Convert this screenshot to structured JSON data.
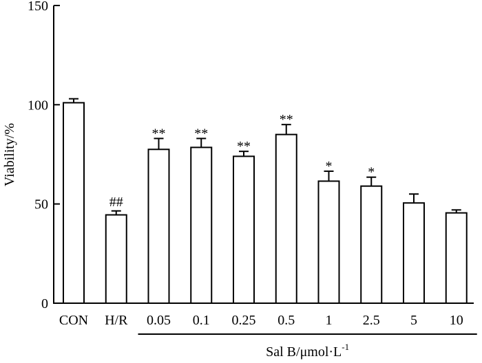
{
  "chart_data": {
    "type": "bar",
    "ylabel": "Viability/%",
    "ylim": [
      0,
      150
    ],
    "yticks": [
      0,
      50,
      100,
      150
    ],
    "group_label": {
      "prefix": "Sal B/μmol·L",
      "superscript": "-1"
    },
    "categories": [
      "CON",
      "H/R",
      "0.05",
      "0.1",
      "0.25",
      "0.5",
      "1",
      "2.5",
      "5",
      "10"
    ],
    "grouped_categories": [
      "0.05",
      "0.1",
      "0.25",
      "0.5",
      "1",
      "2.5",
      "5",
      "10"
    ],
    "series": [
      {
        "values": [
          101,
          44.5,
          77.5,
          78.5,
          74,
          85,
          61.5,
          59,
          50.5,
          45.5
        ],
        "error": [
          2,
          2,
          5.5,
          4.5,
          2.5,
          5,
          5,
          4.5,
          4.5,
          1.5
        ],
        "annotations": [
          "",
          "##",
          "**",
          "**",
          "**",
          "**",
          "*",
          "*",
          "",
          ""
        ]
      }
    ],
    "colors": {
      "bar_fill": "#ffffff",
      "stroke": "#000000"
    }
  }
}
